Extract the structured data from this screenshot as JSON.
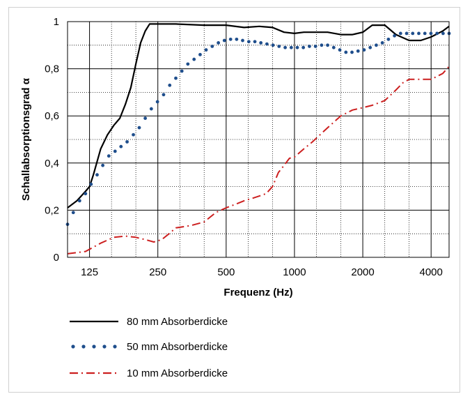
{
  "chart_data": {
    "type": "line",
    "xlabel": "Frequenz (Hz)",
    "ylabel": "Schallabsorptionsgrad α",
    "x_scale": "log",
    "xlim": [
      100,
      4800
    ],
    "ylim": [
      0,
      1
    ],
    "x_major_ticks": [
      125,
      250,
      500,
      1000,
      2000,
      4000
    ],
    "x_tick_labels": [
      "125",
      "250",
      "500",
      "1000",
      "2000",
      "4000"
    ],
    "y_ticks": [
      0,
      0.2,
      0.4,
      0.6,
      0.8,
      1
    ],
    "y_tick_labels": [
      "0",
      "0,2",
      "0,4",
      "0,6",
      "0,8",
      "1"
    ],
    "grid": true,
    "legend_position": "bottom",
    "series": [
      {
        "name": "80 mm Absorberdicke",
        "color": "#000000",
        "style": "solid",
        "x": [
          100,
          110,
          120,
          125,
          130,
          140,
          150,
          160,
          170,
          180,
          190,
          200,
          210,
          220,
          230,
          240,
          250,
          260,
          300,
          400,
          500,
          600,
          700,
          800,
          900,
          1000,
          1100,
          1200,
          1400,
          1600,
          1800,
          2000,
          2200,
          2500,
          2800,
          3200,
          3600,
          4000,
          4500,
          4800
        ],
        "y": [
          0.21,
          0.24,
          0.28,
          0.3,
          0.35,
          0.46,
          0.52,
          0.56,
          0.59,
          0.65,
          0.72,
          0.82,
          0.91,
          0.96,
          0.99,
          0.99,
          0.99,
          0.99,
          0.99,
          0.985,
          0.985,
          0.975,
          0.98,
          0.975,
          0.955,
          0.95,
          0.955,
          0.955,
          0.955,
          0.945,
          0.945,
          0.955,
          0.985,
          0.985,
          0.945,
          0.92,
          0.92,
          0.935,
          0.96,
          0.98
        ]
      },
      {
        "name": "50 mm Absorberdicke",
        "color": "#1f4e8c",
        "style": "dotted",
        "x": [
          100,
          106,
          113,
          120,
          127,
          135,
          143,
          152,
          162,
          172,
          183,
          195,
          207,
          220,
          234,
          249,
          265,
          282,
          300,
          319,
          339,
          361,
          384,
          408,
          434,
          462,
          491,
          523,
          556,
          591,
          629,
          669,
          711,
          756,
          804,
          855,
          910,
          968,
          1029,
          1094,
          1164,
          1238,
          1317,
          1400,
          1489,
          1584,
          1685,
          1792,
          1906,
          2027,
          2156,
          2293,
          2439,
          2594,
          2759,
          2934,
          3121,
          3319,
          3530,
          3755,
          3993,
          4247,
          4517,
          4800
        ],
        "y": [
          0.14,
          0.19,
          0.24,
          0.27,
          0.31,
          0.35,
          0.39,
          0.43,
          0.45,
          0.47,
          0.49,
          0.52,
          0.55,
          0.59,
          0.63,
          0.66,
          0.69,
          0.73,
          0.76,
          0.79,
          0.82,
          0.84,
          0.86,
          0.88,
          0.895,
          0.91,
          0.92,
          0.925,
          0.925,
          0.92,
          0.915,
          0.915,
          0.91,
          0.905,
          0.9,
          0.895,
          0.89,
          0.89,
          0.89,
          0.89,
          0.895,
          0.895,
          0.9,
          0.9,
          0.89,
          0.88,
          0.87,
          0.87,
          0.875,
          0.88,
          0.89,
          0.9,
          0.91,
          0.925,
          0.94,
          0.95,
          0.95,
          0.95,
          0.95,
          0.95,
          0.95,
          0.95,
          0.95,
          0.95
        ]
      },
      {
        "name": "10 mm Absorberdicke",
        "color": "#cc1f1f",
        "style": "dashdot",
        "x": [
          100,
          120,
          140,
          160,
          180,
          200,
          220,
          240,
          260,
          280,
          300,
          350,
          400,
          450,
          500,
          550,
          600,
          650,
          700,
          750,
          800,
          850,
          900,
          950,
          1000,
          1100,
          1200,
          1400,
          1600,
          1800,
          2000,
          2200,
          2500,
          2800,
          3000,
          3200,
          3500,
          4000,
          4500,
          4800
        ],
        "y": [
          0.015,
          0.025,
          0.06,
          0.085,
          0.09,
          0.085,
          0.075,
          0.065,
          0.075,
          0.1,
          0.125,
          0.135,
          0.15,
          0.19,
          0.21,
          0.225,
          0.24,
          0.25,
          0.26,
          0.27,
          0.3,
          0.36,
          0.39,
          0.42,
          0.425,
          0.46,
          0.49,
          0.55,
          0.6,
          0.625,
          0.635,
          0.645,
          0.665,
          0.71,
          0.74,
          0.755,
          0.755,
          0.755,
          0.78,
          0.81
        ]
      }
    ]
  }
}
